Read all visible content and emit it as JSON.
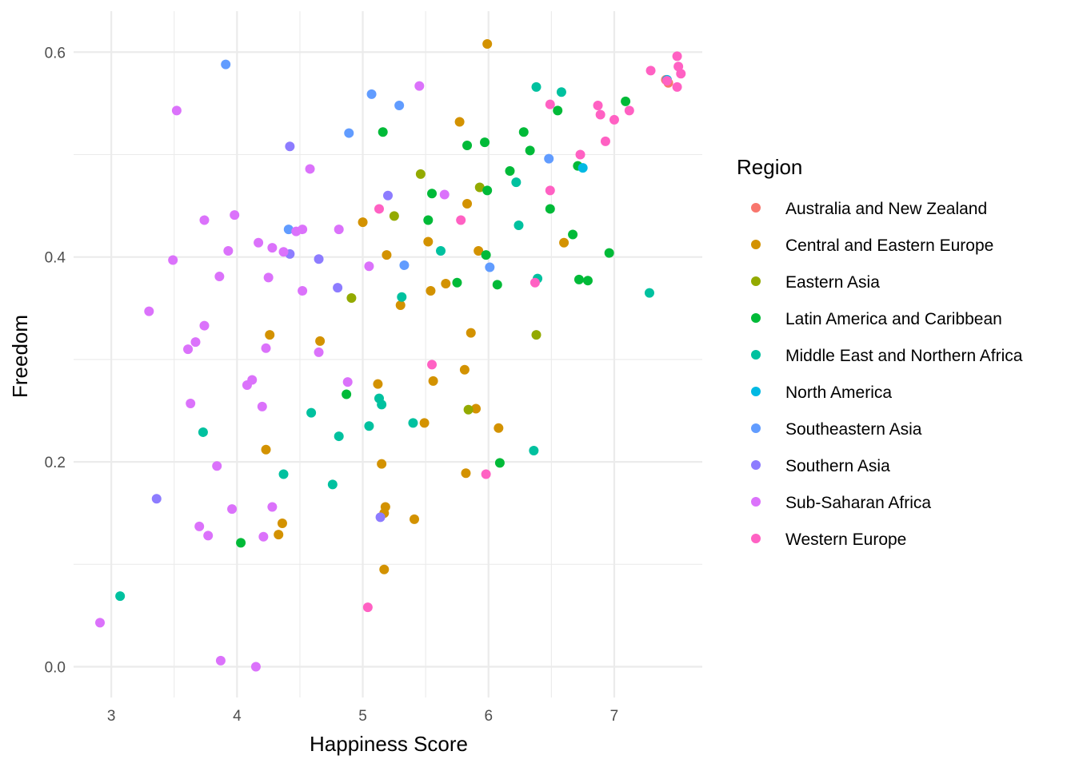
{
  "chart_data": {
    "type": "scatter",
    "title": "",
    "xlabel": "Happiness Score",
    "ylabel": "Freedom",
    "xlim": [
      2.7,
      7.7
    ],
    "ylim": [
      -0.03,
      0.64
    ],
    "x_ticks": [
      3,
      4,
      5,
      6,
      7
    ],
    "y_ticks": [
      0.0,
      0.2,
      0.4,
      0.6
    ],
    "y_tick_labels": [
      "0.0",
      "0.2",
      "0.4",
      "0.6"
    ],
    "grid": true,
    "legend": {
      "title": "Region",
      "placement": "right"
    },
    "series": [
      {
        "name": "Australia and New Zealand",
        "color": "#F8766D",
        "points": [
          [
            7.41,
            0.573
          ],
          [
            7.43,
            0.57
          ]
        ]
      },
      {
        "name": "Central and Eastern Europe",
        "color": "#D39200",
        "points": [
          [
            5.99,
            0.608
          ],
          [
            5.77,
            0.532
          ],
          [
            5.83,
            0.452
          ],
          [
            5.0,
            0.434
          ],
          [
            5.19,
            0.402
          ],
          [
            5.52,
            0.415
          ],
          [
            5.92,
            0.406
          ],
          [
            6.6,
            0.414
          ],
          [
            5.66,
            0.374
          ],
          [
            5.54,
            0.367
          ],
          [
            5.3,
            0.353
          ],
          [
            5.86,
            0.326
          ],
          [
            4.26,
            0.324
          ],
          [
            4.66,
            0.318
          ],
          [
            5.81,
            0.29
          ],
          [
            5.12,
            0.276
          ],
          [
            5.56,
            0.279
          ],
          [
            5.9,
            0.252
          ],
          [
            5.49,
            0.238
          ],
          [
            6.08,
            0.233
          ],
          [
            4.23,
            0.212
          ],
          [
            5.15,
            0.198
          ],
          [
            5.82,
            0.189
          ],
          [
            5.18,
            0.156
          ],
          [
            5.17,
            0.15
          ],
          [
            5.41,
            0.144
          ],
          [
            4.36,
            0.14
          ],
          [
            4.33,
            0.129
          ],
          [
            5.17,
            0.095
          ]
        ]
      },
      {
        "name": "Eastern Asia",
        "color": "#93AA00",
        "points": [
          [
            5.46,
            0.481
          ],
          [
            5.93,
            0.468
          ],
          [
            5.25,
            0.44
          ],
          [
            4.91,
            0.36
          ],
          [
            6.38,
            0.324
          ],
          [
            5.84,
            0.251
          ]
        ]
      },
      {
        "name": "Latin America and Caribbean",
        "color": "#00BA38",
        "points": [
          [
            7.09,
            0.552
          ],
          [
            6.55,
            0.543
          ],
          [
            5.16,
            0.522
          ],
          [
            6.28,
            0.522
          ],
          [
            5.97,
            0.512
          ],
          [
            5.83,
            0.509
          ],
          [
            6.33,
            0.504
          ],
          [
            6.71,
            0.489
          ],
          [
            6.17,
            0.484
          ],
          [
            5.99,
            0.465
          ],
          [
            5.55,
            0.462
          ],
          [
            6.49,
            0.447
          ],
          [
            5.52,
            0.436
          ],
          [
            6.67,
            0.422
          ],
          [
            6.96,
            0.404
          ],
          [
            5.98,
            0.402
          ],
          [
            5.75,
            0.375
          ],
          [
            6.07,
            0.373
          ],
          [
            6.72,
            0.378
          ],
          [
            6.79,
            0.377
          ],
          [
            4.87,
            0.266
          ],
          [
            6.09,
            0.199
          ],
          [
            4.03,
            0.121
          ]
        ]
      },
      {
        "name": "Middle East and Northern Africa",
        "color": "#00C19F",
        "points": [
          [
            6.38,
            0.566
          ],
          [
            6.58,
            0.561
          ],
          [
            6.22,
            0.473
          ],
          [
            6.24,
            0.431
          ],
          [
            5.62,
            0.406
          ],
          [
            6.39,
            0.379
          ],
          [
            5.31,
            0.361
          ],
          [
            7.28,
            0.365
          ],
          [
            5.13,
            0.262
          ],
          [
            5.15,
            0.256
          ],
          [
            4.59,
            0.248
          ],
          [
            5.4,
            0.238
          ],
          [
            5.05,
            0.235
          ],
          [
            3.73,
            0.229
          ],
          [
            4.81,
            0.225
          ],
          [
            6.36,
            0.211
          ],
          [
            4.37,
            0.188
          ],
          [
            4.76,
            0.178
          ],
          [
            3.07,
            0.069
          ]
        ]
      },
      {
        "name": "North America",
        "color": "#00B9E3",
        "points": [
          [
            7.42,
            0.573
          ],
          [
            6.75,
            0.487
          ]
        ]
      },
      {
        "name": "Southeastern Asia",
        "color": "#619CFF",
        "points": [
          [
            3.91,
            0.588
          ],
          [
            5.07,
            0.559
          ],
          [
            5.29,
            0.548
          ],
          [
            4.89,
            0.521
          ],
          [
            6.48,
            0.496
          ],
          [
            4.41,
            0.427
          ],
          [
            5.33,
            0.392
          ],
          [
            6.01,
            0.39
          ]
        ]
      },
      {
        "name": "Southern Asia",
        "color": "#8D7CFF",
        "points": [
          [
            4.42,
            0.508
          ],
          [
            5.2,
            0.46
          ],
          [
            4.42,
            0.403
          ],
          [
            4.65,
            0.398
          ],
          [
            4.8,
            0.37
          ],
          [
            3.36,
            0.164
          ],
          [
            5.14,
            0.146
          ]
        ]
      },
      {
        "name": "Sub-Saharan Africa",
        "color": "#DB72FB",
        "points": [
          [
            5.45,
            0.567
          ],
          [
            3.52,
            0.543
          ],
          [
            4.58,
            0.486
          ],
          [
            5.65,
            0.461
          ],
          [
            3.98,
            0.441
          ],
          [
            3.74,
            0.436
          ],
          [
            4.52,
            0.427
          ],
          [
            4.47,
            0.425
          ],
          [
            4.81,
            0.427
          ],
          [
            4.17,
            0.414
          ],
          [
            4.28,
            0.409
          ],
          [
            4.37,
            0.405
          ],
          [
            3.93,
            0.406
          ],
          [
            3.49,
            0.397
          ],
          [
            5.05,
            0.391
          ],
          [
            3.86,
            0.381
          ],
          [
            4.25,
            0.38
          ],
          [
            4.52,
            0.367
          ],
          [
            3.3,
            0.347
          ],
          [
            3.74,
            0.333
          ],
          [
            3.67,
            0.317
          ],
          [
            3.61,
            0.31
          ],
          [
            4.23,
            0.311
          ],
          [
            4.65,
            0.307
          ],
          [
            4.12,
            0.28
          ],
          [
            4.88,
            0.278
          ],
          [
            4.08,
            0.275
          ],
          [
            3.63,
            0.257
          ],
          [
            4.2,
            0.254
          ],
          [
            3.84,
            0.196
          ],
          [
            3.96,
            0.154
          ],
          [
            4.28,
            0.156
          ],
          [
            3.7,
            0.137
          ],
          [
            3.77,
            0.128
          ],
          [
            4.21,
            0.127
          ],
          [
            2.91,
            0.043
          ],
          [
            3.87,
            0.006
          ],
          [
            4.15,
            0.0
          ]
        ]
      },
      {
        "name": "Western Europe",
        "color": "#FF61C3",
        "points": [
          [
            7.5,
            0.596
          ],
          [
            7.51,
            0.586
          ],
          [
            7.53,
            0.579
          ],
          [
            7.29,
            0.582
          ],
          [
            7.42,
            0.572
          ],
          [
            7.5,
            0.566
          ],
          [
            6.49,
            0.549
          ],
          [
            6.87,
            0.548
          ],
          [
            7.12,
            0.543
          ],
          [
            6.89,
            0.539
          ],
          [
            7.0,
            0.534
          ],
          [
            6.93,
            0.513
          ],
          [
            6.73,
            0.5
          ],
          [
            5.13,
            0.447
          ],
          [
            6.49,
            0.465
          ],
          [
            5.78,
            0.436
          ],
          [
            6.37,
            0.375
          ],
          [
            5.55,
            0.295
          ],
          [
            5.98,
            0.188
          ],
          [
            5.04,
            0.058
          ]
        ]
      }
    ]
  }
}
